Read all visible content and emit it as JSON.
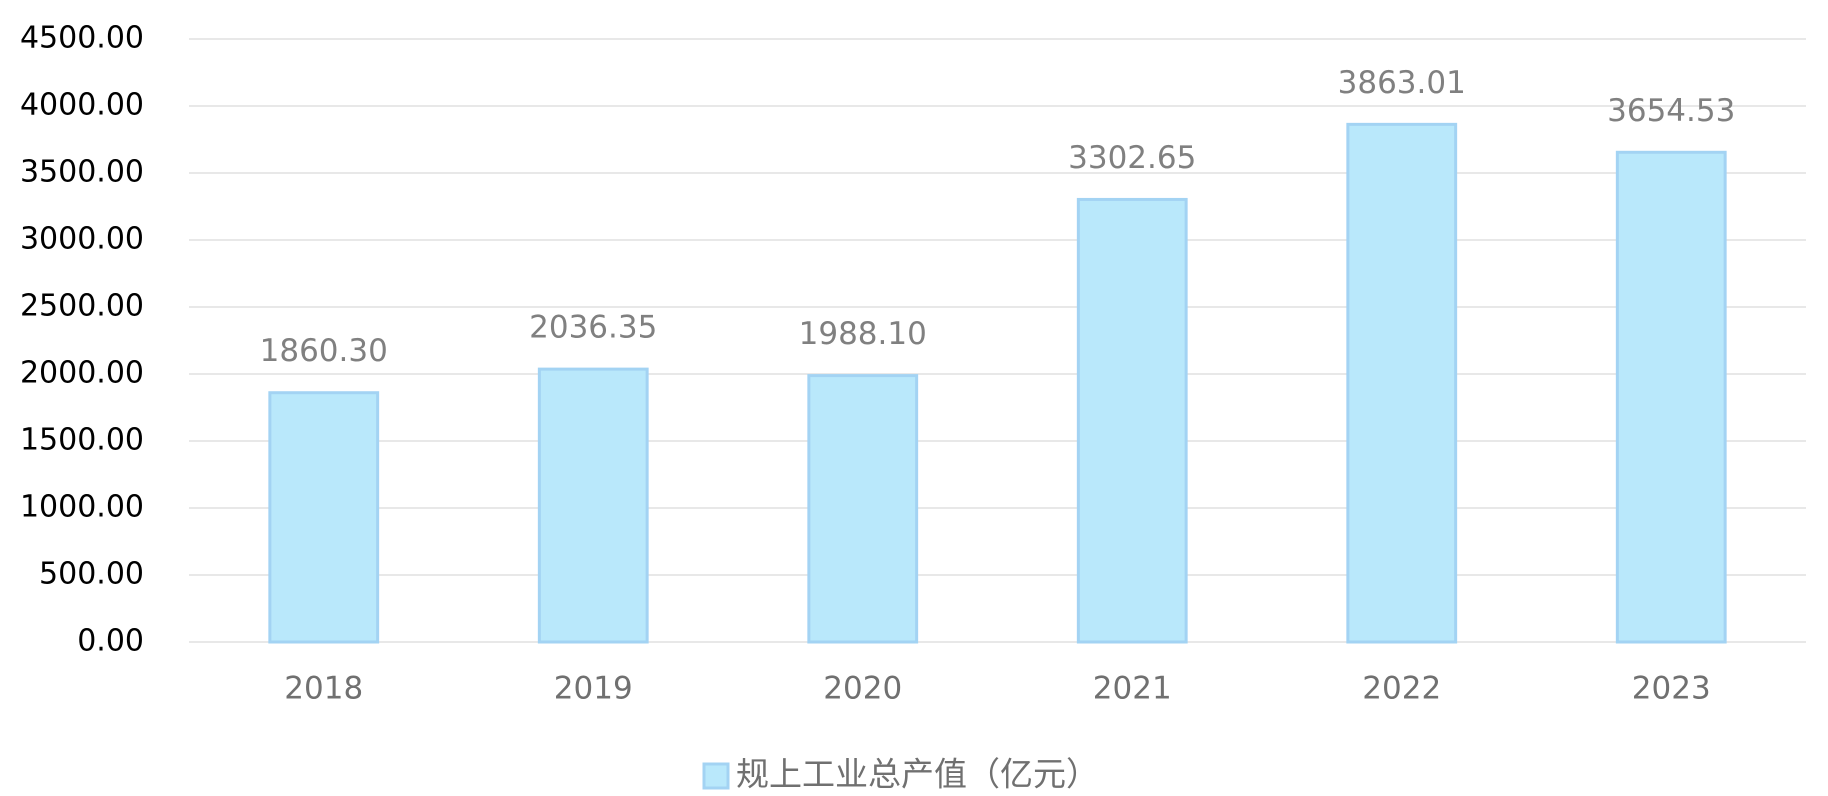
{
  "chart_data": {
    "type": "bar",
    "categories": [
      "2018",
      "2019",
      "2020",
      "2021",
      "2022",
      "2023"
    ],
    "series": [
      {
        "name": "规上工业总产值（亿元）",
        "color": "#b9e8fb",
        "values": [
          1860.3,
          2036.35,
          1988.1,
          3302.65,
          3863.01,
          3654.53
        ],
        "value_labels": [
          "1860.30",
          "2036.35",
          "1988.10",
          "3302.65",
          "3863.01",
          "3654.53"
        ]
      }
    ],
    "ylim": [
      0,
      4500
    ],
    "yticks": [
      {
        "value": 0,
        "label": "0.00"
      },
      {
        "value": 500,
        "label": "500.00"
      },
      {
        "value": 1000,
        "label": "1000.00"
      },
      {
        "value": 1500,
        "label": "1500.00"
      },
      {
        "value": 2000,
        "label": "2000.00"
      },
      {
        "value": 2500,
        "label": "2500.00"
      },
      {
        "value": 3000,
        "label": "3000.00"
      },
      {
        "value": 3500,
        "label": "3500.00"
      },
      {
        "value": 4000,
        "label": "4000.00"
      },
      {
        "value": 4500,
        "label": "4500.00"
      }
    ],
    "grid": true,
    "legend": "bottom"
  }
}
